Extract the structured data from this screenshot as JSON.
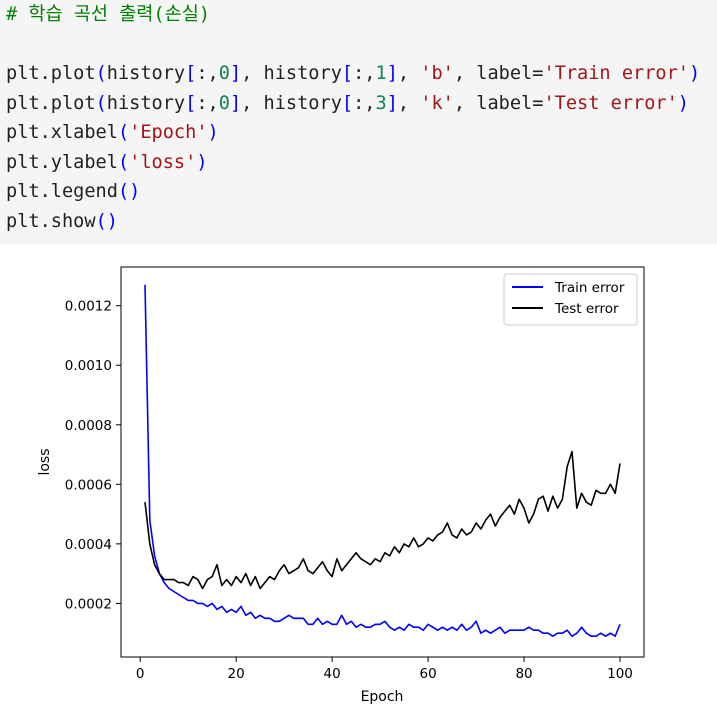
{
  "code_cell": {
    "lines": [
      [
        {
          "t": "# 학습 곡선 출력(손실)",
          "c": "comment"
        }
      ],
      [],
      [
        {
          "t": "plt.plot",
          "c": "plain"
        },
        {
          "t": "(",
          "c": "paren"
        },
        {
          "t": "history",
          "c": "plain"
        },
        {
          "t": "[",
          "c": "paren"
        },
        {
          "t": ":,",
          "c": "plain"
        },
        {
          "t": "0",
          "c": "num"
        },
        {
          "t": "]",
          "c": "paren"
        },
        {
          "t": ", history",
          "c": "plain"
        },
        {
          "t": "[",
          "c": "paren"
        },
        {
          "t": ":,",
          "c": "plain"
        },
        {
          "t": "1",
          "c": "num"
        },
        {
          "t": "]",
          "c": "paren"
        },
        {
          "t": ", ",
          "c": "plain"
        },
        {
          "t": "'b'",
          "c": "str"
        },
        {
          "t": ", label",
          "c": "plain"
        },
        {
          "t": "=",
          "c": "eq"
        },
        {
          "t": "'Train error'",
          "c": "str"
        },
        {
          "t": ")",
          "c": "paren"
        }
      ],
      [
        {
          "t": "plt.plot",
          "c": "plain"
        },
        {
          "t": "(",
          "c": "paren"
        },
        {
          "t": "history",
          "c": "plain"
        },
        {
          "t": "[",
          "c": "paren"
        },
        {
          "t": ":,",
          "c": "plain"
        },
        {
          "t": "0",
          "c": "num"
        },
        {
          "t": "]",
          "c": "paren"
        },
        {
          "t": ", history",
          "c": "plain"
        },
        {
          "t": "[",
          "c": "paren"
        },
        {
          "t": ":,",
          "c": "plain"
        },
        {
          "t": "3",
          "c": "num"
        },
        {
          "t": "]",
          "c": "paren"
        },
        {
          "t": ", ",
          "c": "plain"
        },
        {
          "t": "'k'",
          "c": "str"
        },
        {
          "t": ", label",
          "c": "plain"
        },
        {
          "t": "=",
          "c": "eq"
        },
        {
          "t": "'Test error'",
          "c": "str"
        },
        {
          "t": ")",
          "c": "paren"
        }
      ],
      [
        {
          "t": "plt.xlabel",
          "c": "plain"
        },
        {
          "t": "(",
          "c": "paren"
        },
        {
          "t": "'Epoch'",
          "c": "str"
        },
        {
          "t": ")",
          "c": "paren"
        }
      ],
      [
        {
          "t": "plt.ylabel",
          "c": "plain"
        },
        {
          "t": "(",
          "c": "paren"
        },
        {
          "t": "'loss'",
          "c": "str"
        },
        {
          "t": ")",
          "c": "paren"
        }
      ],
      [
        {
          "t": "plt.legend",
          "c": "plain"
        },
        {
          "t": "()",
          "c": "paren"
        }
      ],
      [
        {
          "t": "plt.show",
          "c": "plain"
        },
        {
          "t": "()",
          "c": "paren"
        }
      ]
    ]
  },
  "chart_data": {
    "type": "line",
    "xlabel": "Epoch",
    "ylabel": "loss",
    "xlim": [
      -4,
      105
    ],
    "ylim": [
      2e-05,
      0.00133
    ],
    "xticks": [
      0,
      20,
      40,
      60,
      80,
      100
    ],
    "xtick_labels": [
      "0",
      "20",
      "40",
      "60",
      "80",
      "100"
    ],
    "yticks": [
      0.0002,
      0.0004,
      0.0006,
      0.0008,
      0.001,
      0.0012
    ],
    "ytick_labels": [
      "0.0002",
      "0.0004",
      "0.0006",
      "0.0008",
      "0.0010",
      "0.0012"
    ],
    "legend_position": "top-right",
    "grid": false,
    "series": [
      {
        "name": "Train error",
        "color": "#0000ff",
        "x": [
          1,
          2,
          3,
          4,
          5,
          6,
          7,
          8,
          9,
          10,
          11,
          12,
          13,
          14,
          15,
          16,
          17,
          18,
          19,
          20,
          21,
          22,
          23,
          24,
          25,
          26,
          27,
          28,
          29,
          30,
          31,
          32,
          33,
          34,
          35,
          36,
          37,
          38,
          39,
          40,
          41,
          42,
          43,
          44,
          45,
          46,
          47,
          48,
          49,
          50,
          51,
          52,
          53,
          54,
          55,
          56,
          57,
          58,
          59,
          60,
          61,
          62,
          63,
          64,
          65,
          66,
          67,
          68,
          69,
          70,
          71,
          72,
          73,
          74,
          75,
          76,
          77,
          78,
          79,
          80,
          81,
          82,
          83,
          84,
          85,
          86,
          87,
          88,
          89,
          90,
          91,
          92,
          93,
          94,
          95,
          96,
          97,
          98,
          99,
          100
        ],
        "y": [
          0.00127,
          0.00048,
          0.00036,
          0.0003,
          0.00027,
          0.00025,
          0.00024,
          0.00023,
          0.00022,
          0.00021,
          0.00021,
          0.0002,
          0.0002,
          0.00019,
          0.0002,
          0.00018,
          0.00019,
          0.00017,
          0.00018,
          0.00017,
          0.00019,
          0.00016,
          0.00017,
          0.00015,
          0.00016,
          0.00015,
          0.00015,
          0.00014,
          0.00014,
          0.00015,
          0.00016,
          0.00015,
          0.00015,
          0.00015,
          0.00013,
          0.00013,
          0.00015,
          0.00013,
          0.00014,
          0.00013,
          0.00013,
          0.00016,
          0.00013,
          0.00014,
          0.00012,
          0.00013,
          0.00012,
          0.00012,
          0.00013,
          0.00013,
          0.00014,
          0.00012,
          0.00011,
          0.00012,
          0.00011,
          0.00013,
          0.00012,
          0.00012,
          0.00011,
          0.00013,
          0.00012,
          0.00011,
          0.00012,
          0.00011,
          0.00012,
          0.00011,
          0.00013,
          0.00011,
          0.00012,
          0.00014,
          0.0001,
          0.00011,
          0.0001,
          0.00011,
          0.00012,
          0.0001,
          0.00011,
          0.00011,
          0.00011,
          0.00011,
          0.00012,
          0.00011,
          0.00011,
          0.0001,
          0.0001,
          9e-05,
          0.0001,
          0.0001,
          0.00011,
          9e-05,
          0.0001,
          0.00012,
          0.0001,
          9e-05,
          9e-05,
          0.0001,
          9e-05,
          0.0001,
          9e-05,
          0.00013
        ]
      },
      {
        "name": "Test error",
        "color": "#000000",
        "x": [
          1,
          2,
          3,
          4,
          5,
          6,
          7,
          8,
          9,
          10,
          11,
          12,
          13,
          14,
          15,
          16,
          17,
          18,
          19,
          20,
          21,
          22,
          23,
          24,
          25,
          26,
          27,
          28,
          29,
          30,
          31,
          32,
          33,
          34,
          35,
          36,
          37,
          38,
          39,
          40,
          41,
          42,
          43,
          44,
          45,
          46,
          47,
          48,
          49,
          50,
          51,
          52,
          53,
          54,
          55,
          56,
          57,
          58,
          59,
          60,
          61,
          62,
          63,
          64,
          65,
          66,
          67,
          68,
          69,
          70,
          71,
          72,
          73,
          74,
          75,
          76,
          77,
          78,
          79,
          80,
          81,
          82,
          83,
          84,
          85,
          86,
          87,
          88,
          89,
          90,
          91,
          92,
          93,
          94,
          95,
          96,
          97,
          98,
          99,
          100
        ],
        "y": [
          0.00054,
          0.0004,
          0.00033,
          0.0003,
          0.00028,
          0.00028,
          0.00028,
          0.00027,
          0.00027,
          0.00026,
          0.00029,
          0.00028,
          0.00025,
          0.00028,
          0.00029,
          0.00033,
          0.00026,
          0.00028,
          0.00026,
          0.00029,
          0.00027,
          0.0003,
          0.00026,
          0.00029,
          0.00025,
          0.00027,
          0.00029,
          0.00028,
          0.00031,
          0.00033,
          0.0003,
          0.00031,
          0.00032,
          0.00035,
          0.00031,
          0.0003,
          0.00032,
          0.00034,
          0.00031,
          0.00029,
          0.00035,
          0.00031,
          0.00033,
          0.00035,
          0.00037,
          0.00035,
          0.00034,
          0.00033,
          0.00035,
          0.00034,
          0.00037,
          0.00036,
          0.00039,
          0.00037,
          0.0004,
          0.00039,
          0.00042,
          0.00039,
          0.0004,
          0.00042,
          0.00041,
          0.00043,
          0.00044,
          0.00047,
          0.00043,
          0.00042,
          0.00045,
          0.00043,
          0.00044,
          0.00047,
          0.00045,
          0.00048,
          0.0005,
          0.00046,
          0.00049,
          0.00051,
          0.00053,
          0.0005,
          0.00055,
          0.00052,
          0.00047,
          0.0005,
          0.00055,
          0.00056,
          0.00051,
          0.00056,
          0.00052,
          0.00055,
          0.00066,
          0.00071,
          0.00052,
          0.00057,
          0.00054,
          0.00053,
          0.00058,
          0.00057,
          0.00057,
          0.0006,
          0.00057,
          0.00067
        ]
      }
    ]
  }
}
